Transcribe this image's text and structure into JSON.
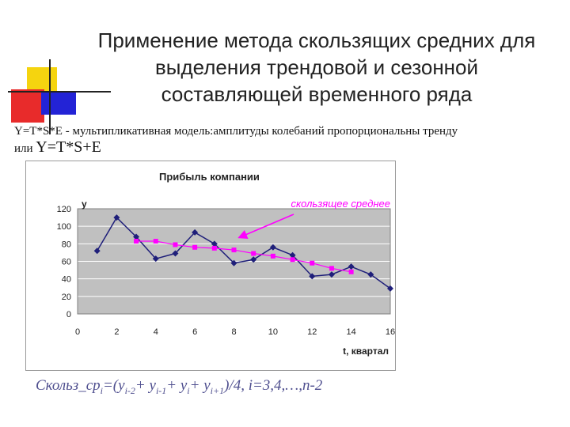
{
  "slide": {
    "title_lines": [
      "Применение метода скользящих средних для",
      "выделения трендовой и сезонной",
      "составляющей временного ряда"
    ],
    "subtitle_line1": "Y=T*S*E - мультипликативная модель:амплитуды колебаний пропорциональны тренду",
    "subtitle_line2_prefix": "или",
    "subtitle_line2_formula": "Y=T*S+E",
    "formula_parts": [
      "Скольз_ср",
      "i",
      "=(y",
      "i-2",
      "+ y",
      "i-1",
      "+ y",
      "i",
      "+ y",
      "i+1",
      ")/4, i=3,4,…,n-2"
    ]
  },
  "colors": {
    "series_main": "#1f1f7a",
    "series_ma": "#ff00ff",
    "plot_bg": "#c0c0c0",
    "annotation": "#ff00ff"
  },
  "chart_data": {
    "type": "line",
    "title": "Прибыль компании",
    "ylabel": "y",
    "xlabel": "t, квартал",
    "xlim": [
      0,
      16
    ],
    "ylim": [
      0,
      120
    ],
    "x_ticks": [
      0,
      2,
      4,
      6,
      8,
      10,
      12,
      14,
      16
    ],
    "y_ticks": [
      0,
      20,
      40,
      60,
      80,
      100,
      120
    ],
    "grid": true,
    "annotation": "скользящее среднее",
    "series": [
      {
        "x": [
          1,
          2,
          3,
          4,
          5,
          6,
          7,
          8,
          9,
          10,
          11,
          12,
          13,
          14,
          15,
          16
        ],
        "values": [
          72,
          110,
          88,
          63,
          69,
          93,
          80,
          58,
          62,
          76,
          67,
          43,
          45,
          54,
          45,
          29
        ],
        "marker": "diamond"
      },
      {
        "x": [
          3,
          4,
          5,
          6,
          7,
          8,
          9,
          10,
          11,
          12,
          13,
          14
        ],
        "values": [
          83,
          83,
          79,
          76,
          75,
          73,
          69,
          66,
          62,
          58,
          52,
          48
        ],
        "marker": "square"
      }
    ]
  }
}
